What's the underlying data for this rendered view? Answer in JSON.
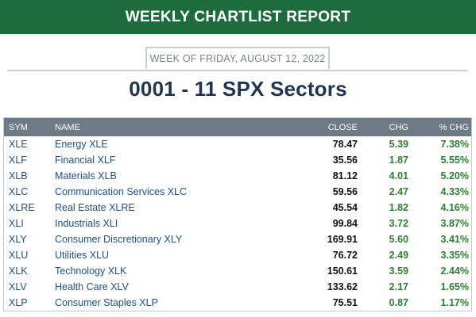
{
  "header": {
    "banner_title": "WEEKLY CHARTLIST REPORT",
    "week_label": "WEEK OF FRIDAY, AUGUST 12, 2022",
    "page_title": "0001 - 11 SPX Sectors"
  },
  "table": {
    "columns": {
      "sym": "SYM",
      "name": "NAME",
      "close": "CLOSE",
      "chg": "CHG",
      "pct_chg": "% CHG"
    },
    "rows": [
      {
        "sym": "XLE",
        "name": "Energy XLE",
        "close": "78.47",
        "chg": "5.39",
        "pct_chg": "7.38%"
      },
      {
        "sym": "XLF",
        "name": "Financial XLF",
        "close": "35.56",
        "chg": "1.87",
        "pct_chg": "5.55%"
      },
      {
        "sym": "XLB",
        "name": "Materials XLB",
        "close": "81.12",
        "chg": "4.01",
        "pct_chg": "5.20%"
      },
      {
        "sym": "XLC",
        "name": "Communication Services XLC",
        "close": "59.56",
        "chg": "2.47",
        "pct_chg": "4.33%"
      },
      {
        "sym": "XLRE",
        "name": "Real Estate XLRE",
        "close": "45.54",
        "chg": "1.82",
        "pct_chg": "4.16%"
      },
      {
        "sym": "XLI",
        "name": "Industrials XLI",
        "close": "99.84",
        "chg": "3.72",
        "pct_chg": "3.87%"
      },
      {
        "sym": "XLY",
        "name": "Consumer Discretionary XLY",
        "close": "169.91",
        "chg": "5.60",
        "pct_chg": "3.41%"
      },
      {
        "sym": "XLU",
        "name": "Utilities XLU",
        "close": "76.72",
        "chg": "2.49",
        "pct_chg": "3.35%"
      },
      {
        "sym": "XLK",
        "name": "Technology XLK",
        "close": "150.61",
        "chg": "3.59",
        "pct_chg": "2.44%"
      },
      {
        "sym": "XLV",
        "name": "Health Care XLV",
        "close": "133.62",
        "chg": "2.17",
        "pct_chg": "1.65%"
      },
      {
        "sym": "XLP",
        "name": "Consumer Staples XLP",
        "close": "75.51",
        "chg": "0.87",
        "pct_chg": "1.17%"
      }
    ]
  },
  "colors": {
    "banner": "#1e6b3d",
    "title": "#1f3550",
    "table_header": "#6e7b87",
    "link": "#1f4f86",
    "positive": "#2e7d32"
  }
}
